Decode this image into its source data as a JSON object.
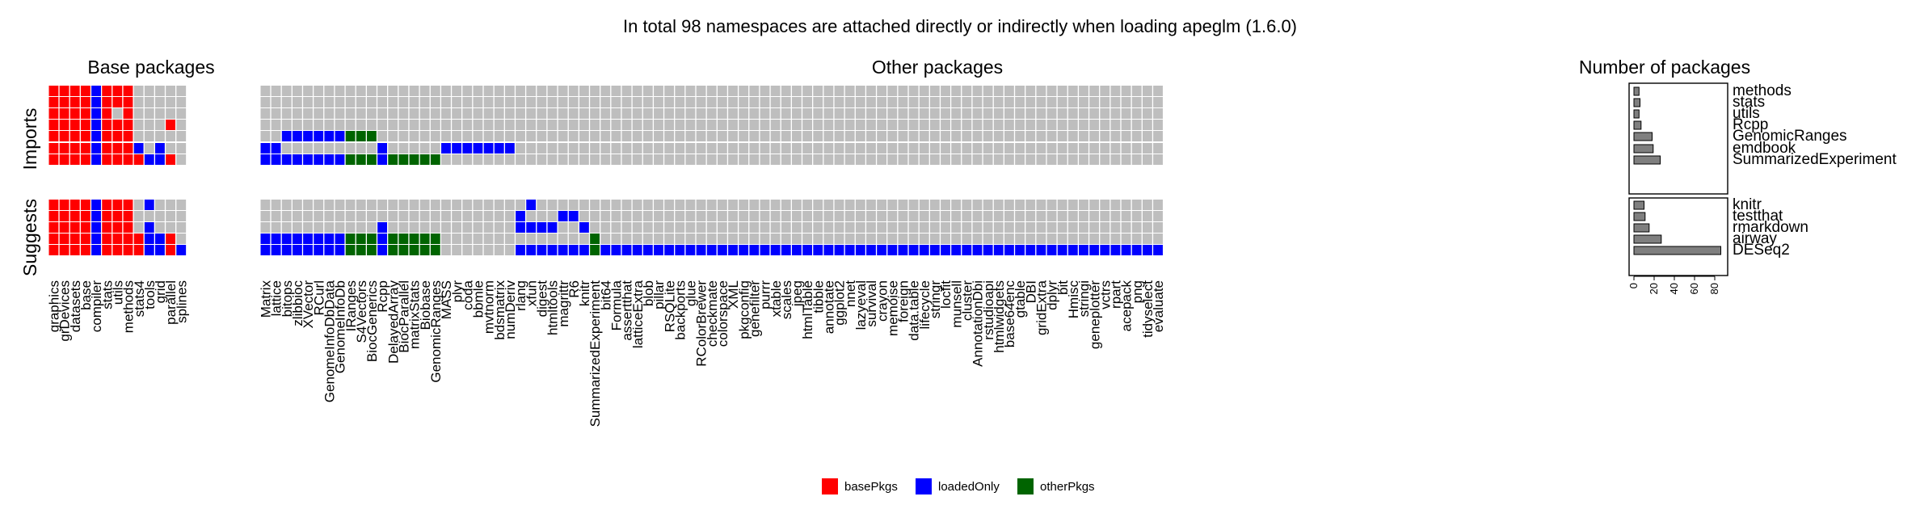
{
  "chart_data": {
    "type": "heatmap",
    "title": "In total 98 namespaces are attached directly or indirectly when loading apeglm (1.6.0)",
    "panel_titles": {
      "base": "Base packages",
      "other": "Other packages",
      "count": "Number of packages"
    },
    "group_labels": {
      "imports": "Imports",
      "suggests": "Suggests"
    },
    "colors": {
      "basePkgs": "#ff0000",
      "loadedOnly": "#0000ff",
      "otherPkgs": "#006400",
      "absent": "#bebebe",
      "bar": "#7f7f7f"
    },
    "legend": {
      "position": "bottom",
      "entries": [
        {
          "key": "basePkgs",
          "label": "basePkgs"
        },
        {
          "key": "loadedOnly",
          "label": "loadedOnly"
        },
        {
          "key": "otherPkgs",
          "label": "otherPkgs"
        }
      ]
    },
    "base_packages": [
      "graphics",
      "grDevices",
      "datasets",
      "base",
      "compiler",
      "stats",
      "utils",
      "methods",
      "stats4",
      "tools",
      "grid",
      "parallel",
      "splines"
    ],
    "other_packages": [
      "Matrix",
      "lattice",
      "bitops",
      "zlibbioc",
      "XVector",
      "RCurl",
      "GenomeInfoDbData",
      "GenomeInfoDb",
      "IRanges",
      "S4Vectors",
      "BiocGenerics",
      "Rcpp",
      "DelayedArray",
      "BiocParallel",
      "matrixStats",
      "Biobase",
      "GenomicRanges",
      "MASS",
      "plyr",
      "coda",
      "bbmle",
      "mvtnorm",
      "bdsmatrix",
      "numDeriv",
      "rlang",
      "xfun",
      "digest",
      "htmltools",
      "magrittr",
      "R6",
      "knitr",
      "SummarizedExperiment",
      "bit64",
      "Formula",
      "assertthat",
      "latticeExtra",
      "blob",
      "pillar",
      "RSQLite",
      "backports",
      "glue",
      "RColorBrewer",
      "checkmate",
      "colorspace",
      "XML",
      "pkgconfig",
      "genefilter",
      "purrr",
      "xtable",
      "scales",
      "jpeg",
      "htmlTable",
      "tibble",
      "annotate",
      "ggplot2",
      "nnet",
      "lazyeval",
      "survival",
      "crayon",
      "memoise",
      "foreign",
      "data.table",
      "lifecycle",
      "stringr",
      "locfit",
      "munsell",
      "cluster",
      "AnnotationDbi",
      "rstudioapi",
      "htmlwidgets",
      "base64enc",
      "gtable",
      "DBI",
      "gridExtra",
      "dplyr",
      "bit",
      "Hmisc",
      "stringi",
      "geneplotter",
      "vctrs",
      "rpart",
      "acepack",
      "png",
      "tidyselect",
      "evaluate"
    ],
    "rows": [
      {
        "name": "methods",
        "group": "imports",
        "count": 5,
        "base": [
          "r",
          "r",
          "r",
          "r",
          "b",
          "r",
          "r",
          "r",
          ".",
          ".",
          ".",
          ".",
          "."
        ],
        "other": []
      },
      {
        "name": "stats",
        "group": "imports",
        "count": 6,
        "base": [
          "r",
          "r",
          "r",
          "r",
          "b",
          "r",
          "r",
          "r",
          ".",
          ".",
          ".",
          ".",
          "."
        ],
        "other": []
      },
      {
        "name": "utils",
        "group": "imports",
        "count": 5,
        "base": [
          "r",
          "r",
          "r",
          "r",
          "b",
          "r",
          ".",
          "r",
          ".",
          ".",
          ".",
          ".",
          "."
        ],
        "other": []
      },
      {
        "name": "Rcpp",
        "group": "imports",
        "count": 7,
        "base": [
          "r",
          "r",
          "r",
          "r",
          "b",
          "r",
          "r",
          "r",
          ".",
          ".",
          ".",
          "r",
          "."
        ],
        "other": []
      },
      {
        "name": "GenomicRanges",
        "group": "imports",
        "count": 18,
        "base": [
          "r",
          "r",
          "r",
          "r",
          "b",
          "r",
          "r",
          "r",
          ".",
          ".",
          ".",
          ".",
          "."
        ],
        "other": [
          [
            2,
            "b"
          ],
          [
            3,
            "b"
          ],
          [
            4,
            "b"
          ],
          [
            5,
            "b"
          ],
          [
            6,
            "b"
          ],
          [
            7,
            "b"
          ],
          [
            8,
            "g"
          ],
          [
            9,
            "g"
          ],
          [
            10,
            "g"
          ]
        ]
      },
      {
        "name": "emdbook",
        "group": "imports",
        "count": 19,
        "base": [
          "r",
          "r",
          "r",
          "r",
          "b",
          "r",
          "r",
          "r",
          "b",
          ".",
          "b",
          ".",
          "."
        ],
        "other": [
          [
            0,
            "b"
          ],
          [
            1,
            "b"
          ],
          [
            11,
            "b"
          ],
          [
            17,
            "b"
          ],
          [
            18,
            "b"
          ],
          [
            19,
            "b"
          ],
          [
            20,
            "b"
          ],
          [
            21,
            "b"
          ],
          [
            22,
            "b"
          ],
          [
            23,
            "b"
          ]
        ]
      },
      {
        "name": "SummarizedExperiment",
        "group": "imports",
        "count": 26,
        "base": [
          "r",
          "r",
          "r",
          "r",
          "b",
          "r",
          "r",
          "r",
          "r",
          "b",
          "b",
          "r",
          "."
        ],
        "other": [
          [
            0,
            "b"
          ],
          [
            1,
            "b"
          ],
          [
            2,
            "b"
          ],
          [
            3,
            "b"
          ],
          [
            4,
            "b"
          ],
          [
            5,
            "b"
          ],
          [
            6,
            "b"
          ],
          [
            7,
            "b"
          ],
          [
            8,
            "g"
          ],
          [
            9,
            "g"
          ],
          [
            10,
            "g"
          ],
          [
            11,
            "b"
          ],
          [
            12,
            "g"
          ],
          [
            13,
            "g"
          ],
          [
            14,
            "g"
          ],
          [
            15,
            "g"
          ],
          [
            16,
            "g"
          ]
        ]
      },
      {
        "name": "knitr",
        "group": "suggests",
        "count": 10,
        "base": [
          "r",
          "r",
          "r",
          "r",
          "b",
          "r",
          "r",
          "r",
          ".",
          "b",
          ".",
          ".",
          "."
        ],
        "other": [
          [
            25,
            "b"
          ]
        ]
      },
      {
        "name": "testthat",
        "group": "suggests",
        "count": 11,
        "base": [
          "r",
          "r",
          "r",
          "r",
          "b",
          "r",
          "r",
          "r",
          ".",
          ".",
          ".",
          ".",
          "."
        ],
        "other": [
          [
            24,
            "b"
          ],
          [
            28,
            "b"
          ],
          [
            29,
            "b"
          ]
        ]
      },
      {
        "name": "rmarkdown",
        "group": "suggests",
        "count": 15,
        "base": [
          "r",
          "r",
          "r",
          "r",
          "b",
          "r",
          "r",
          "r",
          ".",
          "b",
          ".",
          ".",
          "."
        ],
        "other": [
          [
            11,
            "b"
          ],
          [
            24,
            "b"
          ],
          [
            25,
            "b"
          ],
          [
            26,
            "b"
          ],
          [
            27,
            "b"
          ],
          [
            30,
            "b"
          ],
          [
            85,
            "b"
          ]
        ]
      },
      {
        "name": "airway",
        "group": "suggests",
        "count": 27,
        "base": [
          "r",
          "r",
          "r",
          "r",
          "b",
          "r",
          "r",
          "r",
          "r",
          "b",
          "b",
          "r",
          "."
        ],
        "other": [
          [
            0,
            "b"
          ],
          [
            1,
            "b"
          ],
          [
            2,
            "b"
          ],
          [
            3,
            "b"
          ],
          [
            4,
            "b"
          ],
          [
            5,
            "b"
          ],
          [
            6,
            "b"
          ],
          [
            7,
            "b"
          ],
          [
            8,
            "g"
          ],
          [
            9,
            "g"
          ],
          [
            10,
            "g"
          ],
          [
            11,
            "b"
          ],
          [
            12,
            "g"
          ],
          [
            13,
            "g"
          ],
          [
            14,
            "g"
          ],
          [
            15,
            "g"
          ],
          [
            16,
            "g"
          ],
          [
            31,
            "g"
          ]
        ]
      },
      {
        "name": "DESeq2",
        "group": "suggests",
        "count": 86,
        "base": [
          "r",
          "r",
          "r",
          "r",
          "b",
          "r",
          "r",
          "r",
          "r",
          "b",
          "b",
          "r",
          "b"
        ],
        "other": "DESeq2"
      }
    ],
    "count_axis": {
      "ticks": [
        0,
        20,
        40,
        60,
        80
      ],
      "lim": [
        0,
        92
      ]
    }
  }
}
